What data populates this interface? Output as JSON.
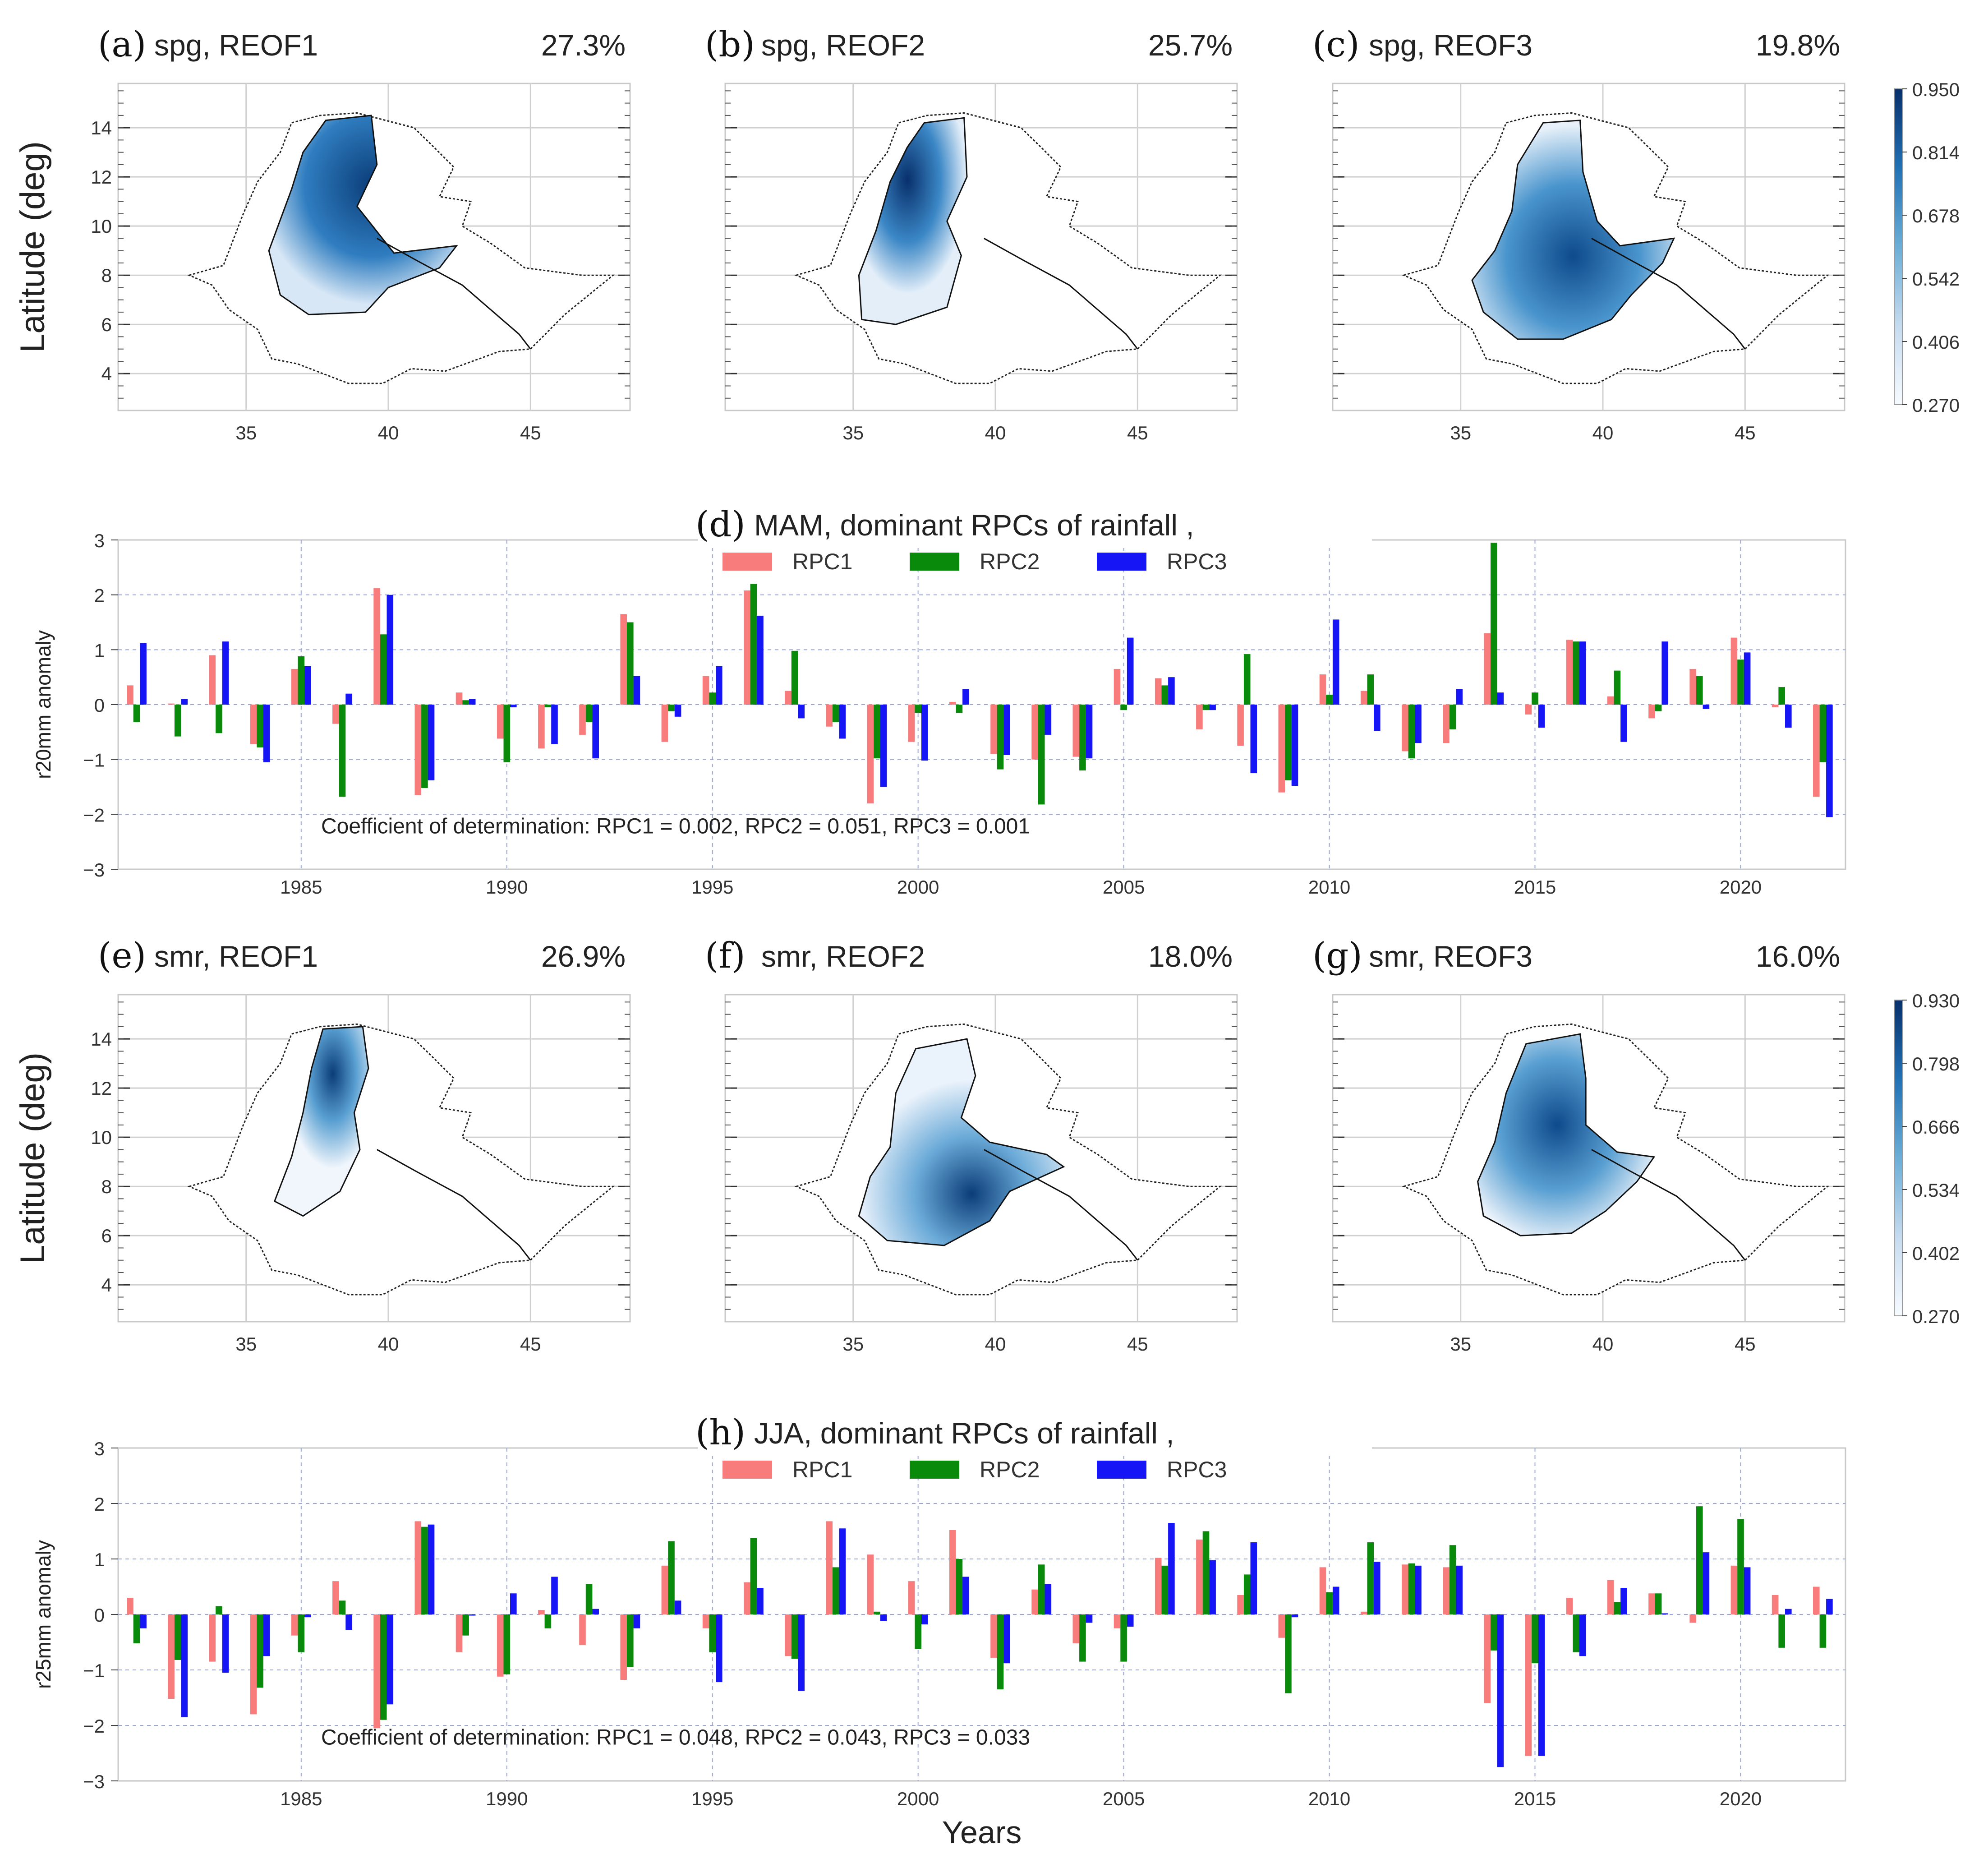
{
  "colors": {
    "rpc1": "#f87c7c",
    "rpc2": "#0a8a0a",
    "rpc3": "#1515f5",
    "grid_dash": "#9aa6d8",
    "map_dark": "#0b3d78",
    "map_light": "#eaf2fb"
  },
  "maps": {
    "ylabel": "Latitude (deg)",
    "xticks": [
      "35",
      "40",
      "45"
    ],
    "yticks": [
      "4",
      "6",
      "8",
      "10",
      "12",
      "14"
    ],
    "panels": [
      {
        "label": "(a)",
        "title": "spg, REOF1",
        "pct": "27.3%"
      },
      {
        "label": "(b)",
        "title": "spg, REOF2",
        "pct": "25.7%"
      },
      {
        "label": "(c)",
        "title": "spg, REOF3",
        "pct": "19.8%"
      },
      {
        "label": "(e)",
        "title": "smr, REOF1",
        "pct": "26.9%"
      },
      {
        "label": "(f)",
        "title": "smr, REOF2",
        "pct": "18.0%"
      },
      {
        "label": "(g)",
        "title": "smr, REOF3",
        "pct": "16.0%"
      }
    ],
    "colorbars": [
      {
        "ticks": [
          "0.950",
          "0.814",
          "0.678",
          "0.542",
          "0.406",
          "0.270"
        ]
      },
      {
        "ticks": [
          "0.930",
          "0.798",
          "0.666",
          "0.534",
          "0.402",
          "0.270"
        ]
      }
    ]
  },
  "chart_data": [
    {
      "type": "bar",
      "label": "(d)",
      "title": "MAM, dominant RPCs of rainfall ,",
      "xlabel": "",
      "ylabel": "r20mm anomaly",
      "ylim": [
        -3,
        3
      ],
      "yticks": [
        "3",
        "2",
        "1",
        "0",
        "−1",
        "−2",
        "−3"
      ],
      "xticks": [
        "1985",
        "1990",
        "1995",
        "2000",
        "2005",
        "2010",
        "2015",
        "2020"
      ],
      "annotation": "Coefficient of determination: RPC1 = 0.002,  RPC2 = 0.051,  RPC3 = 0.001",
      "categories": [
        1981,
        1982,
        1983,
        1984,
        1985,
        1986,
        1987,
        1988,
        1989,
        1990,
        1991,
        1992,
        1993,
        1994,
        1995,
        1996,
        1997,
        1998,
        1999,
        2000,
        2001,
        2002,
        2003,
        2004,
        2005,
        2006,
        2007,
        2008,
        2009,
        2010,
        2011,
        2012,
        2013,
        2014,
        2015,
        2016,
        2017,
        2018,
        2019,
        2020,
        2021,
        2022
      ],
      "series": [
        {
          "name": "RPC1",
          "values": [
            0.35,
            0.02,
            0.9,
            -0.72,
            0.65,
            -0.35,
            2.12,
            -1.65,
            0.22,
            -0.62,
            -0.8,
            -0.55,
            1.65,
            -0.68,
            0.52,
            2.08,
            0.25,
            -0.4,
            -1.8,
            -0.68,
            0.05,
            -0.9,
            -1.0,
            -0.95,
            0.65,
            0.48,
            -0.45,
            -0.75,
            -1.6,
            0.55,
            0.25,
            -0.85,
            -0.7,
            1.3,
            -0.18,
            1.18,
            0.15,
            -0.25,
            0.65,
            1.22,
            -0.05,
            -1.68
          ]
        },
        {
          "name": "RPC2",
          "values": [
            -0.32,
            -0.58,
            -0.52,
            -0.78,
            0.88,
            -1.68,
            1.28,
            -1.52,
            0.08,
            -1.05,
            -0.05,
            -0.32,
            1.5,
            -0.12,
            0.22,
            2.2,
            0.98,
            -0.32,
            -0.98,
            -0.15,
            -0.15,
            -1.18,
            -1.82,
            -1.2,
            -0.1,
            0.35,
            -0.1,
            0.92,
            -1.38,
            0.18,
            0.55,
            -0.98,
            -0.45,
            2.95,
            0.22,
            1.15,
            0.62,
            -0.12,
            0.52,
            0.82,
            0.32,
            -1.05
          ]
        },
        {
          "name": "RPC3",
          "values": [
            1.12,
            0.1,
            1.15,
            -1.05,
            0.7,
            0.2,
            2.0,
            -1.38,
            0.1,
            -0.05,
            -0.72,
            -0.98,
            0.52,
            -0.22,
            0.7,
            1.62,
            -0.25,
            -0.62,
            -1.5,
            -1.02,
            0.28,
            -0.92,
            -0.55,
            -0.98,
            1.22,
            0.5,
            -0.1,
            -1.25,
            -1.48,
            1.55,
            -0.48,
            -0.7,
            0.28,
            0.22,
            -0.42,
            1.15,
            -0.68,
            1.15,
            -0.08,
            0.95,
            -0.42,
            -2.05
          ]
        }
      ]
    },
    {
      "type": "bar",
      "label": "(h)",
      "title": "JJA, dominant RPCs of rainfall ,",
      "xlabel": "Years",
      "ylabel": "r25mm anomaly",
      "ylim": [
        -3,
        3
      ],
      "yticks": [
        "3",
        "2",
        "1",
        "0",
        "−1",
        "−2",
        "−3"
      ],
      "xticks": [
        "1985",
        "1990",
        "1995",
        "2000",
        "2005",
        "2010",
        "2015",
        "2020"
      ],
      "annotation": "Coefficient of determination: RPC1 = 0.048,  RPC2 = 0.043,  RPC3 = 0.033",
      "categories": [
        1981,
        1982,
        1983,
        1984,
        1985,
        1986,
        1987,
        1988,
        1989,
        1990,
        1991,
        1992,
        1993,
        1994,
        1995,
        1996,
        1997,
        1998,
        1999,
        2000,
        2001,
        2002,
        2003,
        2004,
        2005,
        2006,
        2007,
        2008,
        2009,
        2010,
        2011,
        2012,
        2013,
        2014,
        2015,
        2016,
        2017,
        2018,
        2019,
        2020,
        2021,
        2022
      ],
      "series": [
        {
          "name": "RPC1",
          "values": [
            0.3,
            -1.52,
            -0.85,
            -1.8,
            -0.38,
            0.6,
            -2.05,
            1.68,
            -0.68,
            -1.12,
            0.08,
            -0.55,
            -1.18,
            0.88,
            -0.25,
            0.58,
            -0.75,
            1.68,
            1.08,
            0.6,
            1.52,
            -0.78,
            0.45,
            -0.52,
            -0.25,
            1.02,
            1.35,
            0.35,
            -0.42,
            0.85,
            0.05,
            0.9,
            0.85,
            -1.6,
            -2.55,
            0.3,
            0.62,
            0.38,
            -0.15,
            0.88,
            0.35,
            0.5
          ]
        },
        {
          "name": "RPC2",
          "values": [
            -0.52,
            -0.82,
            0.15,
            -1.32,
            -0.68,
            0.25,
            -1.9,
            1.58,
            -0.38,
            -1.08,
            -0.25,
            0.55,
            -0.95,
            1.32,
            -0.68,
            1.38,
            -0.8,
            0.85,
            0.05,
            -0.62,
            1.0,
            -1.35,
            0.9,
            -0.85,
            -0.85,
            0.88,
            1.5,
            0.72,
            -1.42,
            0.4,
            1.3,
            0.92,
            1.25,
            -0.65,
            -0.88,
            -0.68,
            0.22,
            0.38,
            1.95,
            1.72,
            -0.6,
            -0.6
          ]
        },
        {
          "name": "RPC3",
          "values": [
            -0.25,
            -1.85,
            -1.05,
            -0.75,
            -0.05,
            -0.28,
            -1.62,
            1.62,
            -0.02,
            0.38,
            0.68,
            0.1,
            -0.25,
            0.25,
            -1.22,
            0.48,
            -1.38,
            1.55,
            -0.12,
            -0.18,
            0.68,
            -0.88,
            0.55,
            -0.15,
            -0.22,
            1.65,
            0.98,
            1.3,
            -0.05,
            0.5,
            0.95,
            0.88,
            0.88,
            -2.75,
            -2.55,
            -0.75,
            0.48,
            0.02,
            1.12,
            0.85,
            0.1,
            0.28
          ]
        }
      ]
    }
  ]
}
